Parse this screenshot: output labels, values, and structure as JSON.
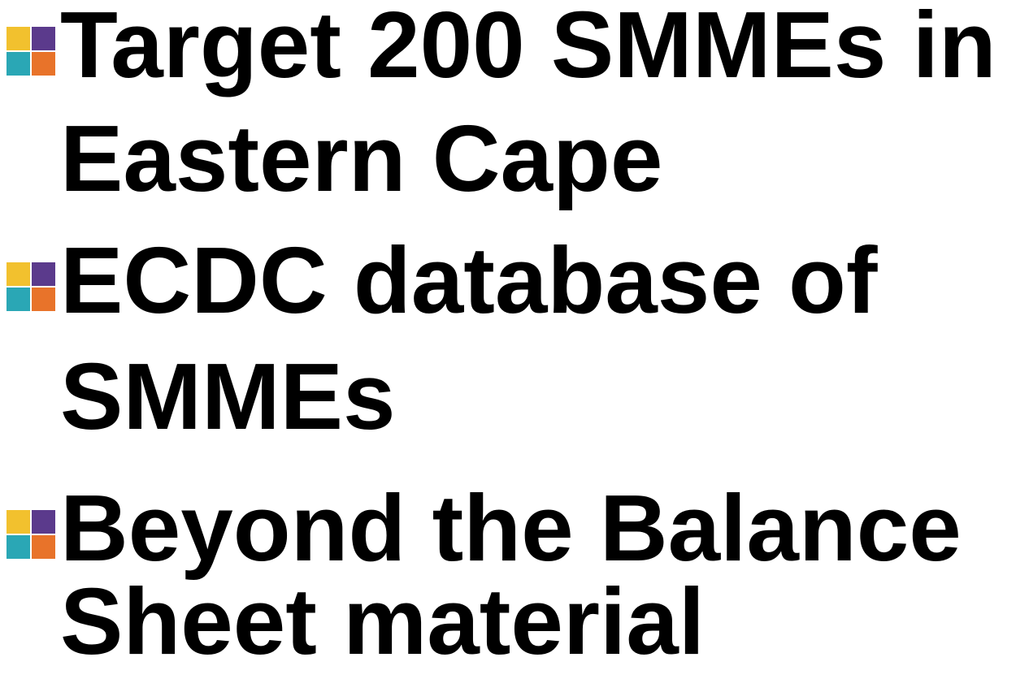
{
  "bullets": [
    {
      "lines": [
        "Target 200 SMMEs in",
        "Eastern Cape"
      ]
    },
    {
      "lines": [
        "ECDC database of",
        "SMMEs"
      ]
    },
    {
      "lines": [
        "Beyond the Balance",
        "Sheet material"
      ]
    }
  ]
}
